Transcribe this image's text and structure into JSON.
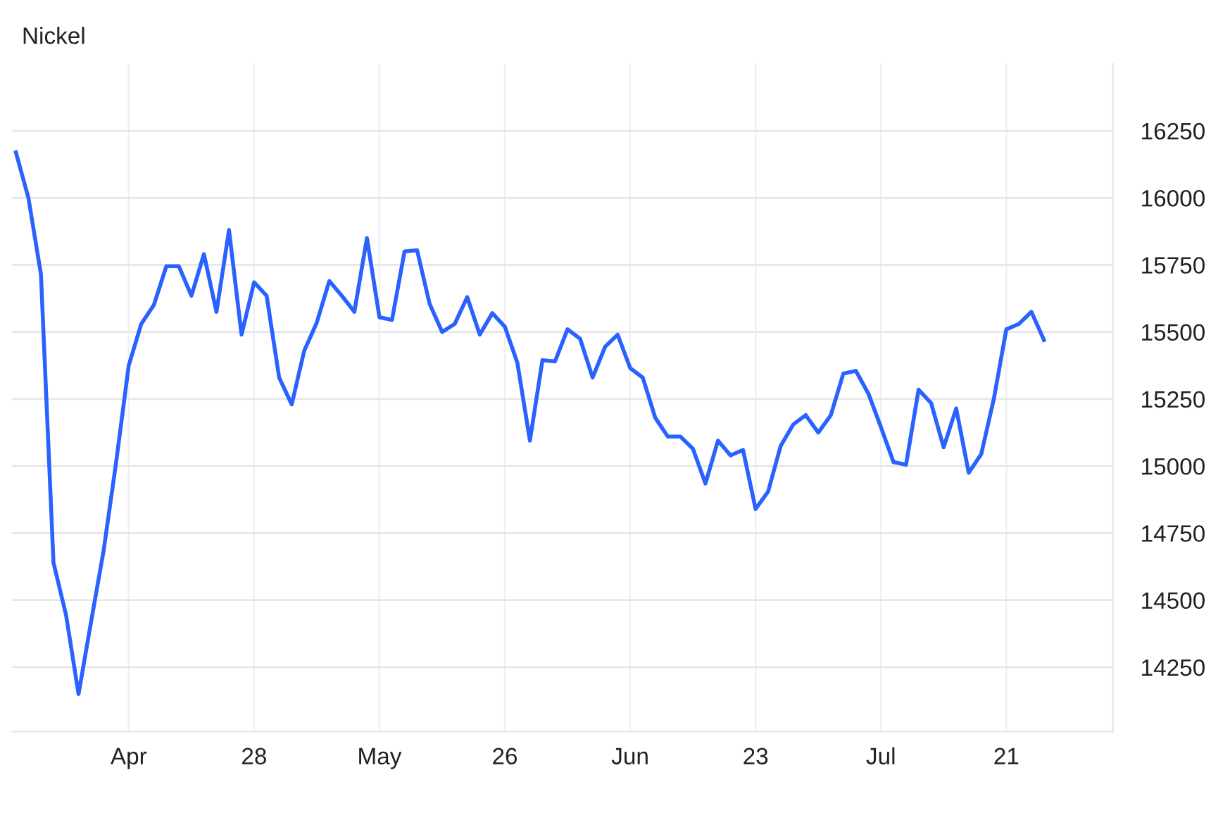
{
  "chart_data": {
    "type": "line",
    "title": "Nickel",
    "categories": [
      null,
      null,
      null,
      null,
      null,
      null,
      null,
      null,
      null,
      "Apr",
      null,
      null,
      null,
      null,
      null,
      null,
      null,
      null,
      null,
      "28",
      null,
      null,
      null,
      null,
      null,
      null,
      null,
      null,
      null,
      "May",
      null,
      null,
      null,
      null,
      null,
      null,
      null,
      null,
      null,
      "26",
      null,
      null,
      null,
      null,
      null,
      null,
      null,
      null,
      null,
      "Jun",
      null,
      null,
      null,
      null,
      null,
      null,
      null,
      null,
      null,
      "23",
      null,
      null,
      null,
      null,
      null,
      null,
      null,
      null,
      null,
      "Jul",
      null,
      null,
      null,
      null,
      null,
      null,
      null,
      null,
      null,
      "21",
      null,
      null,
      null
    ],
    "series": [
      {
        "color": "#2962ff",
        "values": [
          16170,
          16000,
          15715,
          14640,
          14445,
          14150,
          14420,
          14685,
          15015,
          15375,
          15530,
          15600,
          15745,
          15745,
          15635,
          15790,
          15575,
          15880,
          15490,
          15685,
          15635,
          15330,
          15230,
          15430,
          15535,
          15690,
          15635,
          15575,
          15850,
          15555,
          15545,
          15800,
          15805,
          15605,
          15500,
          15530,
          15630,
          15490,
          15570,
          15520,
          15385,
          15095,
          15395,
          15390,
          15510,
          15475,
          15330,
          15445,
          15490,
          15365,
          15330,
          15180,
          15110,
          15110,
          15065,
          14935,
          15095,
          15040,
          15060,
          14840,
          14905,
          15075,
          15155,
          15190,
          15125,
          15190,
          15345,
          15355,
          15270,
          15145,
          15015,
          15005,
          15285,
          15235,
          15070,
          15215,
          14975,
          15045,
          15250,
          15510,
          15530,
          15575,
          15470
        ]
      }
    ],
    "ylim": [
      14010,
      16500
    ],
    "yticks": [
      14250,
      14500,
      14750,
      15000,
      15250,
      15500,
      15750,
      16000,
      16250
    ],
    "grid": true,
    "marker": "none",
    "line_style": "solid"
  }
}
